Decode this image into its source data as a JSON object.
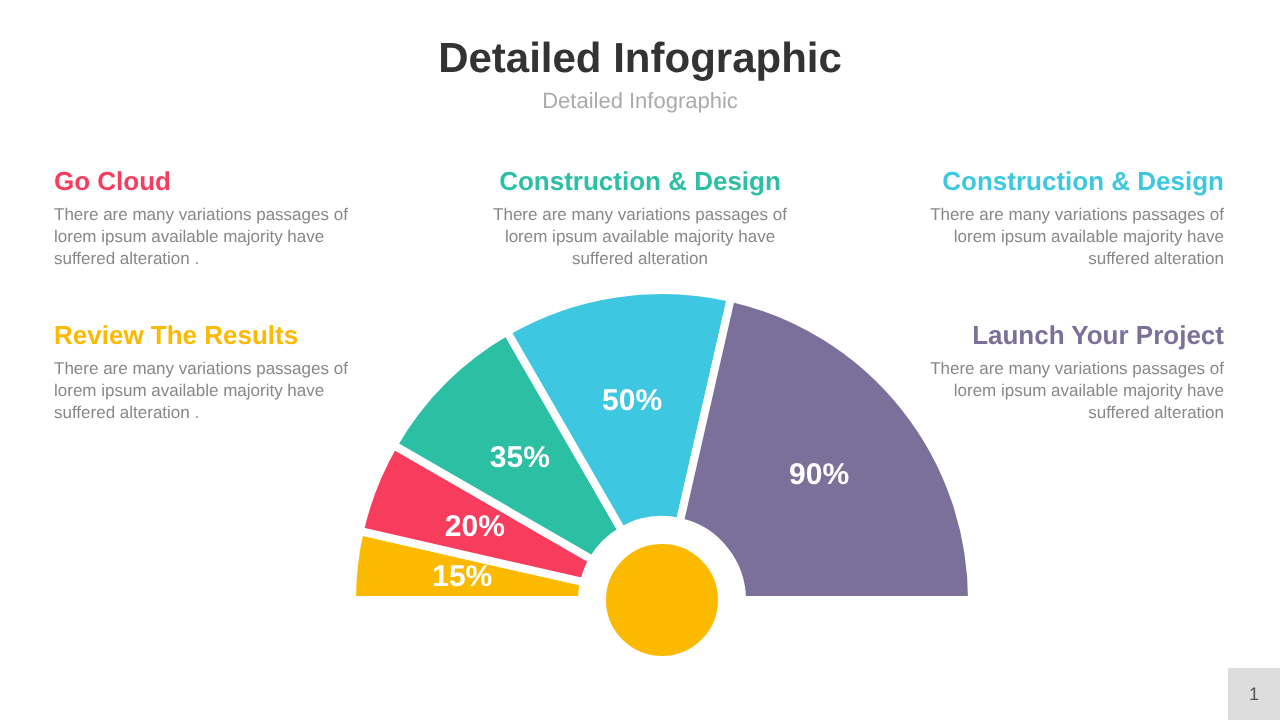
{
  "chart_data": {
    "type": "donut",
    "title": "Detailed Infographic",
    "subtitle": "Detailed Infographic",
    "categories": [
      null,
      null,
      null,
      null,
      null
    ],
    "values": [
      15,
      20,
      35,
      50,
      90
    ],
    "value_labels": [
      "15%",
      "20%",
      "35%",
      "50%",
      "90%"
    ],
    "colors": [
      "#fbba00",
      "#f83c5e",
      "#2bbfa3",
      "#3dc7e0",
      "#7b7099"
    ],
    "annotations": [
      "Review The Results",
      "There are many variations passages of lorem ipsum available  majority have suffered alteration .",
      "Go Cloud",
      "There are many variations passages of lorem ipsum available  majority have suffered alteration .",
      "Construction & Design",
      "There are many variations passages of lorem ipsum available  majority have suffered alteration",
      "Construction & Design",
      "There are many variations passages of lorem ipsum available  majority have suffered alteration",
      "Launch Your Project",
      "There are many variations passages of lorem ipsum available  majority have suffered alteration",
      "1"
    ]
  }
}
